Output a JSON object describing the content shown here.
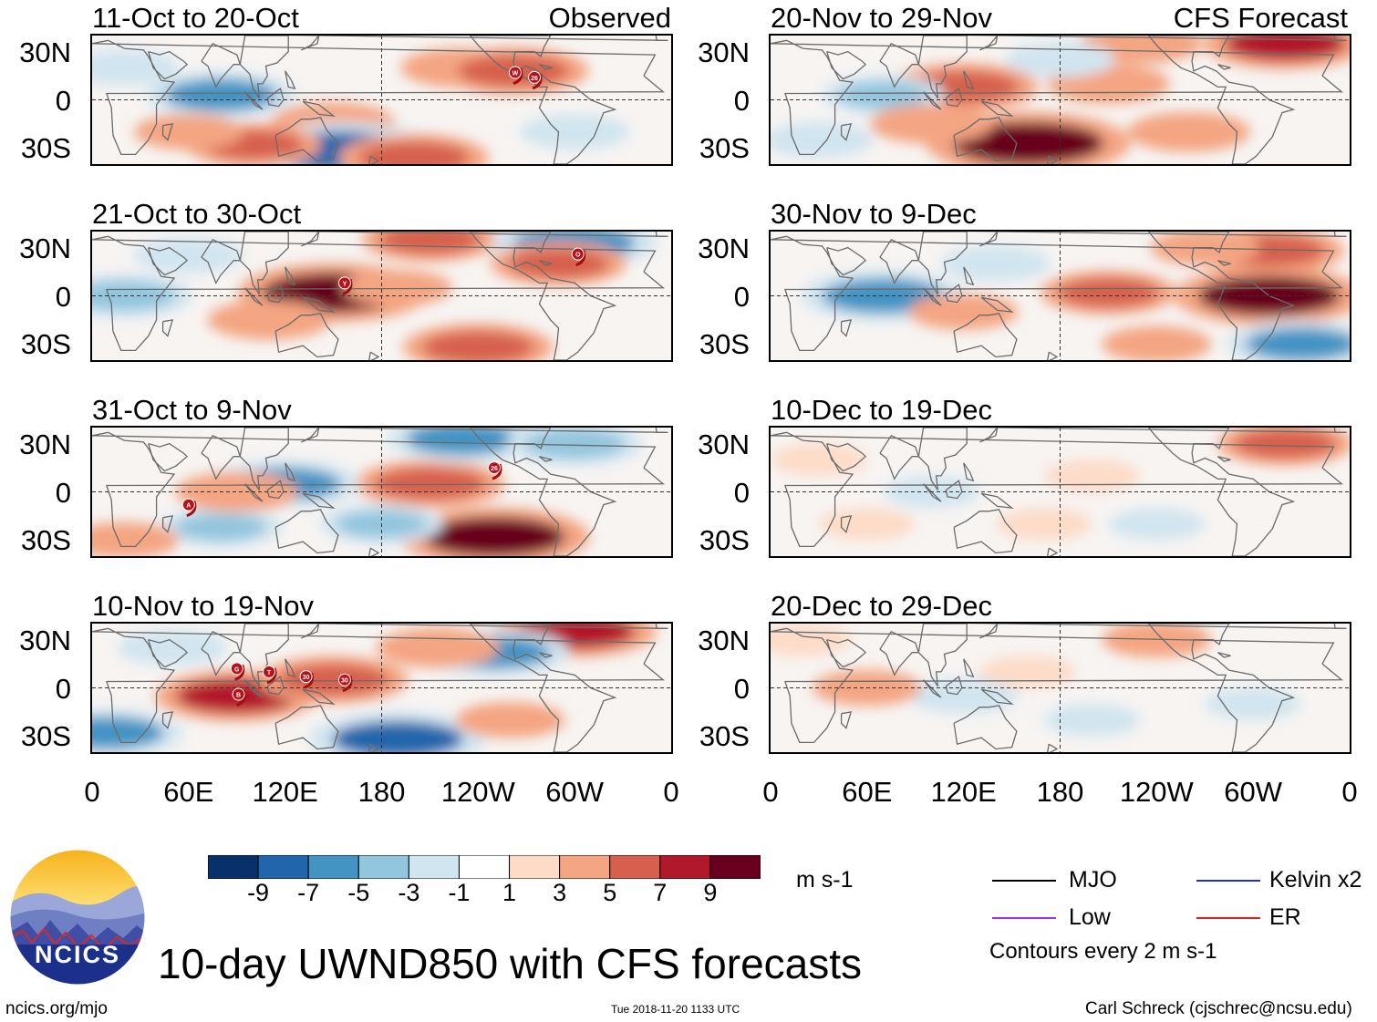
{
  "header": {
    "observed_label": "Observed",
    "forecast_label": "CFS Forecast"
  },
  "chart_data": {
    "type": "heatmap",
    "variable": "10-day UWND850 (850 hPa zonal wind anomaly)",
    "units": "m s-1",
    "colorbar": {
      "ticks": [
        "-9",
        "-7",
        "-5",
        "-3",
        "-1",
        "1",
        "3",
        "5",
        "7",
        "9"
      ],
      "colors": [
        "#08306b",
        "#2166ac",
        "#4393c3",
        "#92c5de",
        "#d1e5f0",
        "#ffffff",
        "#fddbc7",
        "#f4a582",
        "#d6604d",
        "#b2182b",
        "#67001f"
      ]
    },
    "x_axis": {
      "ticks": [
        "0",
        "60E",
        "120E",
        "180",
        "120W",
        "60W",
        "0"
      ],
      "range_deg_east": [
        0,
        360
      ]
    },
    "y_axis": {
      "ticks": [
        "30N",
        "0",
        "30S"
      ],
      "range_deg": [
        -40,
        40
      ]
    },
    "panels": [
      {
        "title": "11-Oct to 20-Oct",
        "column": "observed",
        "blobs": [
          {
            "lon": 80,
            "lat": 3,
            "value": -6
          },
          {
            "lon": 150,
            "lat": -14,
            "value": 4
          },
          {
            "lon": 155,
            "lat": -32,
            "value": -9
          },
          {
            "lon": 230,
            "lat": 20,
            "value": 4
          },
          {
            "lon": 200,
            "lat": -36,
            "value": 6
          },
          {
            "lon": 20,
            "lat": 20,
            "value": -3
          },
          {
            "lon": 100,
            "lat": -28,
            "value": 5
          },
          {
            "lon": 262,
            "lat": 18,
            "value": 6
          },
          {
            "lon": 60,
            "lat": -20,
            "value": 3
          },
          {
            "lon": 300,
            "lat": -20,
            "value": -3
          }
        ],
        "storms": [
          {
            "lon": 263,
            "lat": 17,
            "label": "W"
          },
          {
            "lon": 275,
            "lat": 14,
            "label": "26"
          }
        ]
      },
      {
        "title": "21-Oct to 30-Oct",
        "column": "observed",
        "blobs": [
          {
            "lon": 150,
            "lat": 2,
            "value": 9
          },
          {
            "lon": 210,
            "lat": 35,
            "value": 5
          },
          {
            "lon": 300,
            "lat": 33,
            "value": -7
          },
          {
            "lon": 240,
            "lat": -32,
            "value": 6
          },
          {
            "lon": 20,
            "lat": 0,
            "value": -5
          },
          {
            "lon": 110,
            "lat": -15,
            "value": 4
          },
          {
            "lon": 60,
            "lat": 25,
            "value": -3
          },
          {
            "lon": 290,
            "lat": 20,
            "value": 5
          },
          {
            "lon": 190,
            "lat": 5,
            "value": 3
          }
        ],
        "storms": [
          {
            "lon": 157,
            "lat": 8,
            "label": "Y"
          },
          {
            "lon": 302,
            "lat": 26,
            "label": "O"
          }
        ]
      },
      {
        "title": "31-Oct to 9-Nov",
        "column": "observed",
        "blobs": [
          {
            "lon": 250,
            "lat": -28,
            "value": 9
          },
          {
            "lon": 210,
            "lat": 5,
            "value": 6
          },
          {
            "lon": 230,
            "lat": 33,
            "value": -6
          },
          {
            "lon": 120,
            "lat": 5,
            "value": -6
          },
          {
            "lon": 80,
            "lat": -22,
            "value": -4
          },
          {
            "lon": 300,
            "lat": 30,
            "value": -5
          },
          {
            "lon": 180,
            "lat": -20,
            "value": -4
          },
          {
            "lon": 90,
            "lat": 0,
            "value": 4
          },
          {
            "lon": 20,
            "lat": -30,
            "value": 3
          }
        ],
        "storms": [
          {
            "lon": 60,
            "lat": -8,
            "label": "A"
          },
          {
            "lon": 250,
            "lat": 15,
            "label": "26"
          }
        ]
      },
      {
        "title": "10-Nov to 19-Nov",
        "column": "observed",
        "blobs": [
          {
            "lon": 90,
            "lat": -5,
            "value": 7
          },
          {
            "lon": 150,
            "lat": 5,
            "value": 6
          },
          {
            "lon": 190,
            "lat": -32,
            "value": -8
          },
          {
            "lon": 300,
            "lat": 35,
            "value": 7
          },
          {
            "lon": 250,
            "lat": 22,
            "value": -6
          },
          {
            "lon": 10,
            "lat": -28,
            "value": -6
          },
          {
            "lon": 215,
            "lat": 25,
            "value": 4
          },
          {
            "lon": 260,
            "lat": -20,
            "value": 3
          },
          {
            "lon": 50,
            "lat": 25,
            "value": -3
          }
        ],
        "storms": [
          {
            "lon": 90,
            "lat": 12,
            "label": "G"
          },
          {
            "lon": 110,
            "lat": 10,
            "label": "T"
          },
          {
            "lon": 133,
            "lat": 7,
            "label": "30"
          },
          {
            "lon": 157,
            "lat": 5,
            "label": "30"
          },
          {
            "lon": 91,
            "lat": -4,
            "label": "B"
          }
        ]
      },
      {
        "title": "20-Nov to 29-Nov",
        "column": "forecast",
        "blobs": [
          {
            "lon": 160,
            "lat": -27,
            "value": 10
          },
          {
            "lon": 120,
            "lat": 8,
            "value": 6
          },
          {
            "lon": 210,
            "lat": 10,
            "value": 4
          },
          {
            "lon": 320,
            "lat": 35,
            "value": 7
          },
          {
            "lon": 70,
            "lat": 3,
            "value": -4
          },
          {
            "lon": 230,
            "lat": 35,
            "value": 4
          },
          {
            "lon": 260,
            "lat": -20,
            "value": 4
          },
          {
            "lon": 100,
            "lat": -15,
            "value": 4
          },
          {
            "lon": 180,
            "lat": 25,
            "value": -3
          },
          {
            "lon": 30,
            "lat": -25,
            "value": -3
          }
        ],
        "storms": []
      },
      {
        "title": "30-Nov to 9-Dec",
        "column": "forecast",
        "blobs": [
          {
            "lon": 70,
            "lat": 0,
            "value": -7
          },
          {
            "lon": 310,
            "lat": 0,
            "value": 9
          },
          {
            "lon": 310,
            "lat": 28,
            "value": 6
          },
          {
            "lon": 210,
            "lat": 2,
            "value": 5
          },
          {
            "lon": 330,
            "lat": -30,
            "value": -6
          },
          {
            "lon": 240,
            "lat": -30,
            "value": 3
          },
          {
            "lon": 140,
            "lat": 20,
            "value": -3
          },
          {
            "lon": 120,
            "lat": -10,
            "value": 3
          },
          {
            "lon": 270,
            "lat": 30,
            "value": 3
          }
        ],
        "storms": []
      },
      {
        "title": "10-Dec to 19-Dec",
        "column": "forecast",
        "blobs": [
          {
            "lon": 320,
            "lat": 30,
            "value": 5
          },
          {
            "lon": 200,
            "lat": 10,
            "value": 2
          },
          {
            "lon": 100,
            "lat": 0,
            "value": -2
          },
          {
            "lon": 60,
            "lat": -20,
            "value": 2
          },
          {
            "lon": 240,
            "lat": -20,
            "value": -2
          },
          {
            "lon": 170,
            "lat": -20,
            "value": 2
          },
          {
            "lon": 30,
            "lat": 20,
            "value": 2
          }
        ],
        "storms": []
      },
      {
        "title": "20-Dec to 29-Dec",
        "column": "forecast",
        "blobs": [
          {
            "lon": 240,
            "lat": 30,
            "value": 3
          },
          {
            "lon": 120,
            "lat": -5,
            "value": -3
          },
          {
            "lon": 60,
            "lat": 0,
            "value": 3
          },
          {
            "lon": 20,
            "lat": 30,
            "value": 2
          },
          {
            "lon": 200,
            "lat": -20,
            "value": -2
          },
          {
            "lon": 300,
            "lat": -10,
            "value": -2
          },
          {
            "lon": 160,
            "lat": 10,
            "value": 2
          }
        ],
        "storms": []
      }
    ]
  },
  "legend": {
    "units": "m s-1",
    "items": [
      {
        "label": "MJO",
        "color": "#000000"
      },
      {
        "label": "Kelvin x2",
        "color": "#1f2fd6"
      },
      {
        "label": "Low",
        "color": "#9b30ff"
      },
      {
        "label": "ER",
        "color": "#e0201b"
      }
    ],
    "contours_note": "Contours every 2 m s-1"
  },
  "footer": {
    "title": "10-day UWND850 with CFS forecasts",
    "logo_text": "NCICS",
    "website": "ncics.org/mjo",
    "timestamp": "Tue 2018-11-20 1133 UTC",
    "credit": "Carl Schreck (cjschrec@ncsu.edu)"
  }
}
